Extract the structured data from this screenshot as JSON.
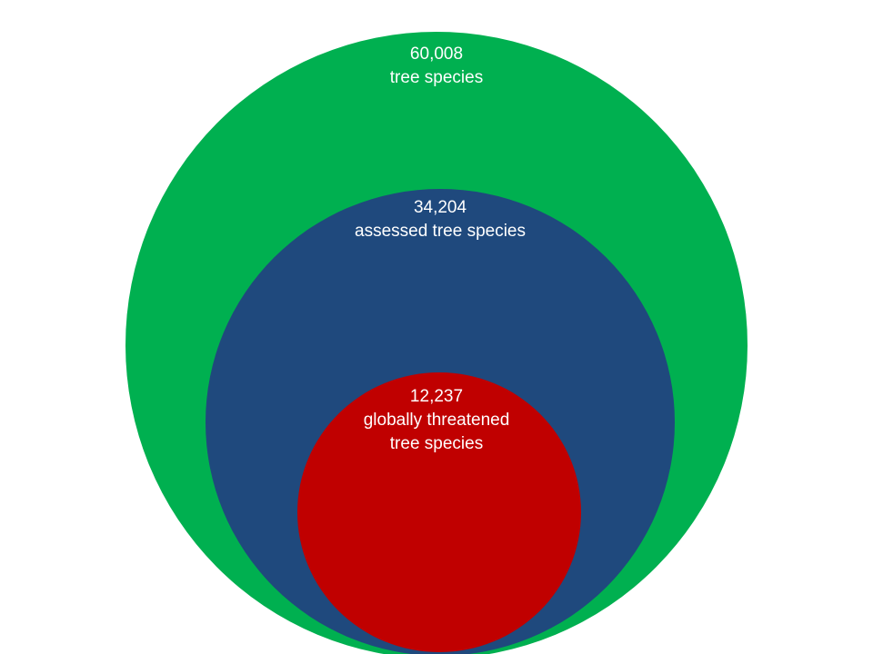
{
  "circles": [
    {
      "id": "outer",
      "count": "60,008",
      "lines": [
        "tree species"
      ],
      "color": "#00b050"
    },
    {
      "id": "middle",
      "count": "34,204",
      "lines": [
        "assessed tree species"
      ],
      "color": "#1f497d"
    },
    {
      "id": "inner",
      "count": "12,237",
      "lines": [
        "globally threatened",
        "tree species"
      ],
      "color": "#c00000"
    }
  ]
}
